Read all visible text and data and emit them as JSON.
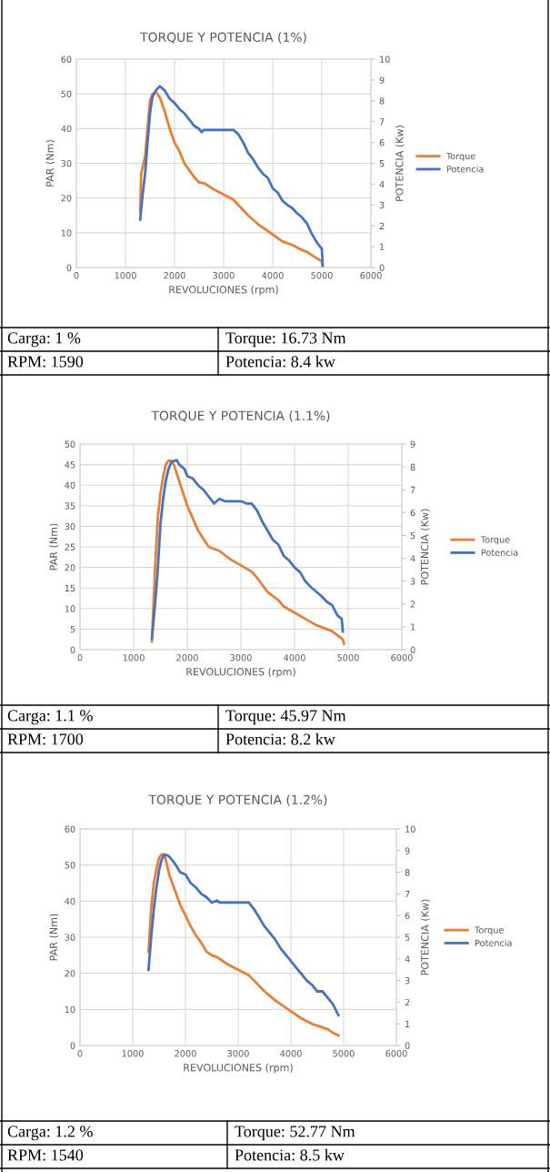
{
  "chart_data": [
    {
      "type": "line",
      "title": "TORQUE Y POTENCIA (1%)",
      "xlabel": "REVOLUCIONES (rpm)",
      "ylabel": "PAR (Nm)",
      "y2label": "POTENCIA (Kw)",
      "xlim": [
        0,
        6000
      ],
      "xticks": [
        0,
        1000,
        2000,
        3000,
        4000,
        5000,
        6000
      ],
      "ylim": [
        0,
        60
      ],
      "yticks": [
        0,
        10,
        20,
        30,
        40,
        50,
        60
      ],
      "y2lim": [
        0,
        10
      ],
      "y2ticks": [
        0,
        1,
        2,
        3,
        4,
        5,
        6,
        7,
        8,
        9,
        10
      ],
      "grid": true,
      "legend": "right",
      "marker": "none",
      "line_style": "solid",
      "annotations": [
        "Carga: 1 %",
        "Torque: 16.73 Nm",
        "RPM: 1590",
        "Potencia: 8.4 kw"
      ],
      "series": [
        {
          "name": "Torque",
          "color": "#ed7d31",
          "x": [
            1300,
            1320,
            1400,
            1450,
            1500,
            1550,
            1620,
            1700,
            1800,
            1900,
            2000,
            2100,
            2200,
            2300,
            2400,
            2500,
            2600,
            2800,
            3000,
            3200,
            3300,
            3500,
            3700,
            3900,
            4000,
            4200,
            4400,
            4600,
            4700,
            4800,
            5000,
            5020
          ],
          "values": [
            16,
            27,
            32,
            40,
            48,
            50,
            50.5,
            49,
            45,
            40,
            36,
            33.5,
            30,
            28,
            26,
            24.5,
            24.3,
            22.5,
            21,
            19.5,
            18,
            15,
            12.5,
            10.5,
            9.5,
            7.5,
            6.5,
            5,
            4.5,
            3.5,
            1.8,
            0
          ]
        },
        {
          "name": "Potencia",
          "color": "#4472c4",
          "axis": "y2",
          "x": [
            1300,
            1350,
            1400,
            1450,
            1500,
            1550,
            1620,
            1700,
            1800,
            1900,
            2000,
            2100,
            2200,
            2300,
            2400,
            2500,
            2550,
            2600,
            3000,
            3200,
            3300,
            3400,
            3500,
            3600,
            3700,
            3800,
            3900,
            4000,
            4100,
            4200,
            4300,
            4400,
            4500,
            4600,
            4700,
            4800,
            4900,
            5000,
            5020
          ],
          "values": [
            2.3,
            3.5,
            4.5,
            6,
            7.4,
            8.2,
            8.5,
            8.7,
            8.5,
            8.1,
            7.9,
            7.6,
            7.4,
            7.1,
            6.8,
            6.65,
            6.5,
            6.6,
            6.6,
            6.6,
            6.4,
            6.0,
            5.5,
            5.2,
            4.8,
            4.5,
            4.3,
            3.8,
            3.6,
            3.2,
            3.0,
            2.85,
            2.6,
            2.4,
            2.1,
            1.6,
            1.2,
            0.9,
            0
          ]
        }
      ]
    },
    {
      "type": "line",
      "title": "TORQUE Y POTENCIA (1.1%)",
      "xlabel": "REVOLUCIONES (rpm)",
      "ylabel": "PAR (Nm)",
      "y2label": "POTENCIA (Kw)",
      "xlim": [
        0,
        6000
      ],
      "xticks": [
        0,
        1000,
        2000,
        3000,
        4000,
        5000,
        6000
      ],
      "ylim": [
        0,
        50
      ],
      "yticks": [
        0,
        5,
        10,
        15,
        20,
        25,
        30,
        35,
        40,
        45,
        50
      ],
      "y2lim": [
        0,
        9
      ],
      "y2ticks": [
        0,
        1,
        2,
        3,
        4,
        5,
        6,
        7,
        8,
        9
      ],
      "grid": true,
      "legend": "right",
      "marker": "none",
      "line_style": "solid",
      "annotations": [
        "Carga: 1.1 %",
        "Torque: 45.97 Nm",
        "RPM: 1700",
        "Potencia: 8.2 kw"
      ],
      "series": [
        {
          "name": "Torque",
          "color": "#ed7d31",
          "x": [
            1340,
            1400,
            1450,
            1500,
            1550,
            1600,
            1650,
            1700,
            1750,
            1800,
            1900,
            2000,
            2100,
            2200,
            2300,
            2400,
            2500,
            2600,
            2800,
            3000,
            3200,
            3300,
            3500,
            3700,
            3800,
            4000,
            4200,
            4400,
            4600,
            4700,
            4800,
            4900,
            4920
          ],
          "values": [
            2,
            20,
            32,
            38,
            42,
            45,
            46,
            46,
            45,
            43,
            39,
            35,
            32,
            29,
            27,
            25,
            24.5,
            24,
            22,
            20.5,
            19,
            17.5,
            14,
            12,
            10.5,
            9,
            7.5,
            6,
            5,
            4.5,
            3.5,
            2.5,
            1.5
          ]
        },
        {
          "name": "Potencia",
          "color": "#4472c4",
          "axis": "y2",
          "x": [
            1340,
            1400,
            1450,
            1500,
            1550,
            1600,
            1650,
            1700,
            1800,
            1850,
            1950,
            2000,
            2100,
            2200,
            2300,
            2400,
            2500,
            2600,
            2700,
            3000,
            3100,
            3200,
            3300,
            3400,
            3500,
            3600,
            3700,
            3800,
            3900,
            4000,
            4100,
            4200,
            4300,
            4400,
            4500,
            4600,
            4700,
            4800,
            4880,
            4900
          ],
          "values": [
            0.5,
            2,
            3.5,
            5.5,
            6.6,
            7.4,
            7.9,
            8.2,
            8.3,
            8.1,
            7.9,
            7.6,
            7.5,
            7.2,
            7.0,
            6.7,
            6.4,
            6.6,
            6.5,
            6.5,
            6.4,
            6.4,
            6.1,
            5.6,
            5.2,
            4.8,
            4.6,
            4.1,
            3.9,
            3.6,
            3.4,
            3.0,
            2.75,
            2.55,
            2.35,
            2.1,
            1.95,
            1.5,
            1.35,
            0.8
          ]
        }
      ]
    },
    {
      "type": "line",
      "title": "TORQUE Y POTENCIA (1.2%)",
      "xlabel": "REVOLUCIONES (rpm)",
      "ylabel": "PAR (Nm)",
      "y2label": "POTENCIA (Kw)",
      "xlim": [
        0,
        6000
      ],
      "xticks": [
        0,
        1000,
        2000,
        3000,
        4000,
        5000,
        6000
      ],
      "ylim": [
        0,
        60
      ],
      "yticks": [
        0,
        10,
        20,
        30,
        40,
        50,
        60
      ],
      "y2lim": [
        0,
        10
      ],
      "y2ticks": [
        0,
        1,
        2,
        3,
        4,
        5,
        6,
        7,
        8,
        9,
        10
      ],
      "grid": true,
      "legend": "right",
      "marker": "none",
      "line_style": "solid",
      "annotations": [
        "Carga: 1.2 %",
        "Torque: 52.77 Nm",
        "RPM: 1540",
        "Potencia: 8.5 kw"
      ],
      "series": [
        {
          "name": "Torque",
          "color": "#ed7d31",
          "x": [
            1300,
            1350,
            1400,
            1450,
            1500,
            1550,
            1600,
            1650,
            1700,
            1800,
            1900,
            2000,
            2100,
            2200,
            2300,
            2400,
            2500,
            2600,
            2800,
            3000,
            3200,
            3300,
            3500,
            3700,
            3900,
            4000,
            4200,
            4400,
            4500,
            4700,
            4800,
            4900
          ],
          "values": [
            26,
            38,
            45,
            49,
            52,
            53,
            53,
            50,
            47,
            43,
            39,
            36,
            33,
            30.5,
            28.5,
            26,
            25,
            24.5,
            22.5,
            21,
            19.5,
            18,
            15,
            12.5,
            10.5,
            9.5,
            7.5,
            6,
            5.5,
            4.5,
            3.5,
            2.8
          ]
        },
        {
          "name": "Potencia",
          "color": "#4472c4",
          "axis": "y2",
          "x": [
            1300,
            1350,
            1400,
            1450,
            1500,
            1550,
            1600,
            1650,
            1700,
            1800,
            1900,
            2000,
            2100,
            2200,
            2300,
            2400,
            2500,
            2600,
            2650,
            3000,
            3200,
            3300,
            3400,
            3500,
            3600,
            3700,
            3800,
            3900,
            4000,
            4100,
            4200,
            4300,
            4400,
            4500,
            4600,
            4700,
            4800,
            4900
          ],
          "values": [
            3.5,
            5,
            6.3,
            7.3,
            8.1,
            8.6,
            8.8,
            8.8,
            8.7,
            8.4,
            8.0,
            7.9,
            7.5,
            7.3,
            7.0,
            6.85,
            6.6,
            6.7,
            6.6,
            6.6,
            6.6,
            6.3,
            5.9,
            5.5,
            5.2,
            4.9,
            4.5,
            4.2,
            3.9,
            3.6,
            3.3,
            3.0,
            2.8,
            2.5,
            2.5,
            2.2,
            1.9,
            1.4
          ]
        }
      ]
    }
  ]
}
